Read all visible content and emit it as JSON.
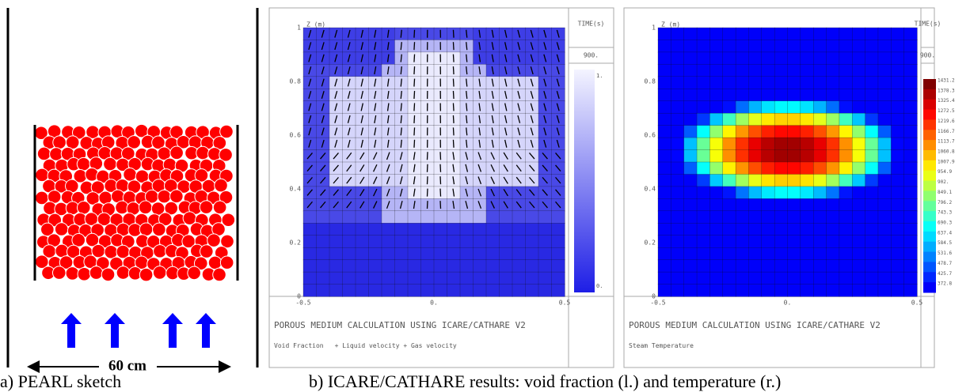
{
  "panel_a": {
    "dimension": "60 cm",
    "caption": "a) PEARL sketch"
  },
  "caption_b": "b) ICARE/CATHARE results: void fraction (l.) and temperature (r.)",
  "plots": [
    {
      "z_label": "Z (m)",
      "z_ticks": [
        "0",
        "0.2",
        "0.4",
        "0.6",
        "0.8",
        "1"
      ],
      "x_ticks": [
        "-0.5",
        "0.",
        "0.5"
      ],
      "time_label": "TIME(s)",
      "time": "900.",
      "colorbar": [
        "1.",
        "0."
      ],
      "banner": "POROUS MEDIUM CALCULATION USING ICARE/CATHARE V2",
      "legend": "Void Fraction",
      "legend_extra": "+ Liquid velocity + Gas velocity"
    },
    {
      "z_label": "Z (m)",
      "z_ticks": [
        "0",
        "0.2",
        "0.4",
        "0.6",
        "0.8",
        "1"
      ],
      "x_ticks": [
        "-0.5",
        "0.",
        "0.5"
      ],
      "time_label": "TIME(s)",
      "time": "900.",
      "colorbar": [
        "1431.2",
        "1378.3",
        "1325.4",
        "1272.5",
        "1219.6",
        "1166.7",
        "1113.7",
        "1060.8",
        "1007.9",
        "954.9",
        "902.",
        "849.1",
        "796.2",
        "743.3",
        "690.3",
        "637.4",
        "584.5",
        "531.6",
        "478.7",
        "425.7",
        "372.8"
      ],
      "banner": "POROUS MEDIUM CALCULATION USING ICARE/CATHARE V2",
      "legend": "Steam Temperature"
    }
  ]
}
